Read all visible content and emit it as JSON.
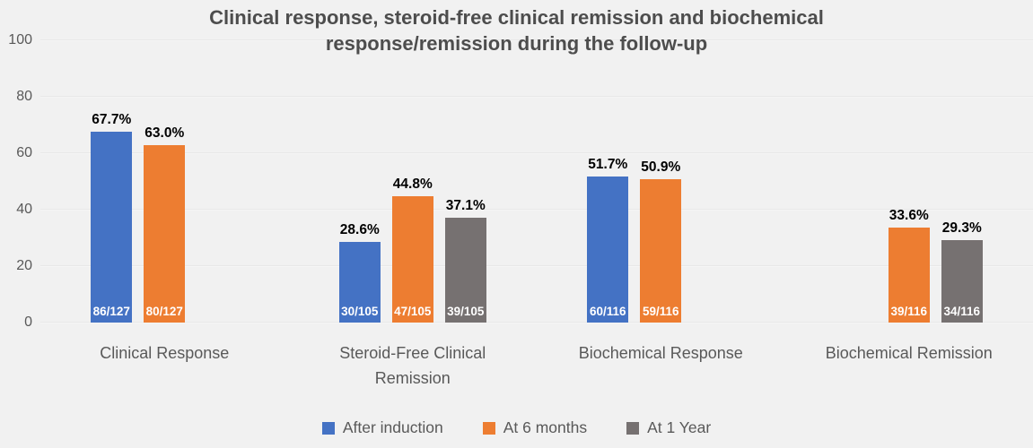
{
  "chart_data": {
    "type": "bar",
    "title": "Clinical response, steroid-free clinical remission and biochemical response/remission during the follow-up",
    "categories": [
      "Clinical Response",
      "Steroid-Free Clinical Remission",
      "Biochemical Response",
      "Biochemical Remission"
    ],
    "series": [
      {
        "name": "After induction",
        "color": "#4472C4",
        "values": [
          67.7,
          28.6,
          51.7,
          null
        ],
        "value_labels": [
          "67.7%",
          "28.6%",
          "51.7%",
          null
        ],
        "count_labels": [
          "86/127",
          "30/105",
          "60/116",
          null
        ]
      },
      {
        "name": "At 6 months",
        "color": "#ED7D31",
        "values": [
          63.0,
          44.8,
          50.9,
          33.6
        ],
        "value_labels": [
          "63.0%",
          "44.8%",
          "50.9%",
          "33.6%"
        ],
        "count_labels": [
          "80/127",
          "47/105",
          "59/116",
          "39/116"
        ]
      },
      {
        "name": "At 1 Year",
        "color": "#767171",
        "values": [
          null,
          37.1,
          null,
          29.3
        ],
        "value_labels": [
          null,
          "37.1%",
          null,
          "29.3%"
        ],
        "count_labels": [
          null,
          "39/105",
          null,
          "34/116"
        ]
      }
    ],
    "ylim": [
      0,
      100
    ],
    "yticks": [
      0,
      20,
      40,
      60,
      80,
      100
    ],
    "grid": true,
    "legend_position": "bottom",
    "colors": {
      "background": "#F1F1F1",
      "gridline": "#E5E5E5",
      "axis_text": "#595959",
      "value_label": "#000000",
      "count_label": "#FFFFFF",
      "title_text": "#4D4D4D"
    }
  }
}
